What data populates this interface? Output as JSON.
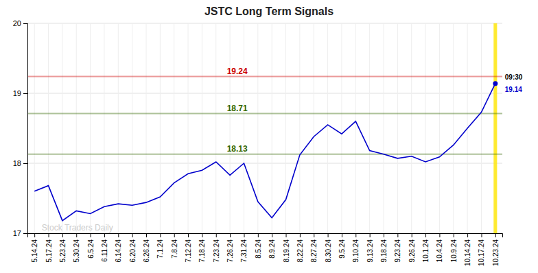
{
  "chart_data": {
    "type": "line",
    "title": "JSTC Long Term Signals",
    "categories": [
      "5.14.24",
      "5.17.24",
      "5.23.24",
      "5.30.24",
      "6.5.24",
      "6.11.24",
      "6.14.24",
      "6.20.24",
      "6.26.24",
      "7.1.24",
      "7.8.24",
      "7.12.24",
      "7.18.24",
      "7.23.24",
      "7.26.24",
      "7.31.24",
      "8.5.24",
      "8.9.24",
      "8.19.24",
      "8.22.24",
      "8.27.24",
      "8.30.24",
      "9.5.24",
      "9.10.24",
      "9.13.24",
      "9.18.24",
      "9.23.24",
      "9.26.24",
      "10.1.24",
      "10.4.24",
      "10.9.24",
      "10.14.24",
      "10.17.24",
      "10.23.24"
    ],
    "values": [
      17.6,
      17.68,
      17.18,
      17.32,
      17.28,
      17.38,
      17.42,
      17.4,
      17.44,
      17.52,
      17.72,
      17.85,
      17.9,
      18.02,
      17.83,
      18.0,
      17.45,
      17.22,
      17.48,
      18.12,
      18.38,
      18.55,
      18.42,
      18.6,
      18.18,
      18.13,
      18.07,
      18.1,
      18.02,
      18.09,
      18.26,
      18.5,
      18.73,
      19.14
    ],
    "color": "#0000cc",
    "ylim": [
      17,
      20
    ],
    "yticks": [
      17,
      18,
      19,
      20
    ],
    "grid": true,
    "hlines": [
      {
        "value": 19.24,
        "label": "19.24",
        "color": "#cc0000"
      },
      {
        "value": 18.71,
        "label": "18.71",
        "color": "#336600"
      },
      {
        "value": 18.13,
        "label": "18.13",
        "color": "#336600"
      }
    ],
    "annotations": [
      {
        "text": "Stock Traders Daily",
        "color": "#cccccc"
      },
      {
        "text": "09:30",
        "x": "10.23.24",
        "y": 19.14
      },
      {
        "text": "19.14",
        "x": "10.23.24",
        "y": 19.14,
        "color": "#0000cc"
      }
    ]
  }
}
